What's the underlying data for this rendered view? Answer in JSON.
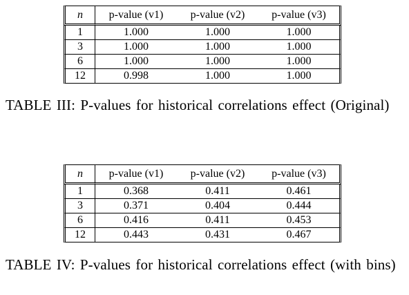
{
  "tables": [
    {
      "header": [
        "n",
        "p-value (v1)",
        "p-value (v2)",
        "p-value (v3)"
      ],
      "rows": [
        [
          "1",
          "1.000",
          "1.000",
          "1.000"
        ],
        [
          "3",
          "1.000",
          "1.000",
          "1.000"
        ],
        [
          "6",
          "1.000",
          "1.000",
          "1.000"
        ],
        [
          "12",
          "0.998",
          "1.000",
          "1.000"
        ]
      ],
      "caption": "TABLE III: P-values for historical correlations effect (Original)"
    },
    {
      "header": [
        "n",
        "p-value (v1)",
        "p-value (v2)",
        "p-value (v3)"
      ],
      "rows": [
        [
          "1",
          "0.368",
          "0.411",
          "0.461"
        ],
        [
          "3",
          "0.371",
          "0.404",
          "0.444"
        ],
        [
          "6",
          "0.416",
          "0.411",
          "0.453"
        ],
        [
          "12",
          "0.443",
          "0.431",
          "0.467"
        ]
      ],
      "caption": "TABLE IV: P-values for historical correlations effect (with bins)"
    }
  ]
}
